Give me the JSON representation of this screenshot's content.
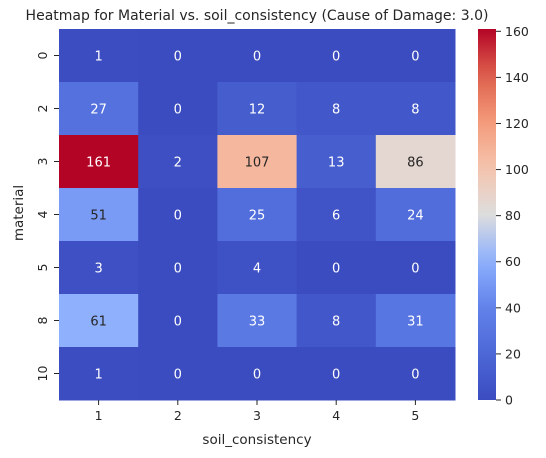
{
  "chart_data": {
    "type": "heatmap",
    "title": "Heatmap for Material vs. soil_consistency (Cause of Damage: 3.0)",
    "xlabel": "soil_consistency",
    "ylabel": "material",
    "x_categories": [
      "1",
      "2",
      "3",
      "4",
      "5"
    ],
    "y_categories": [
      "0",
      "2",
      "3",
      "4",
      "5",
      "8",
      "10"
    ],
    "values": [
      [
        1,
        0,
        0,
        0,
        0
      ],
      [
        27,
        0,
        12,
        8,
        8
      ],
      [
        161,
        2,
        107,
        13,
        86
      ],
      [
        51,
        0,
        25,
        6,
        24
      ],
      [
        3,
        0,
        4,
        0,
        0
      ],
      [
        61,
        0,
        33,
        8,
        31
      ],
      [
        1,
        0,
        0,
        0,
        0
      ]
    ],
    "colormap": "coolwarm",
    "vmin": 0,
    "vmax": 161,
    "colorbar_ticks": [
      "0",
      "20",
      "40",
      "60",
      "80",
      "100",
      "120",
      "140",
      "160"
    ]
  }
}
